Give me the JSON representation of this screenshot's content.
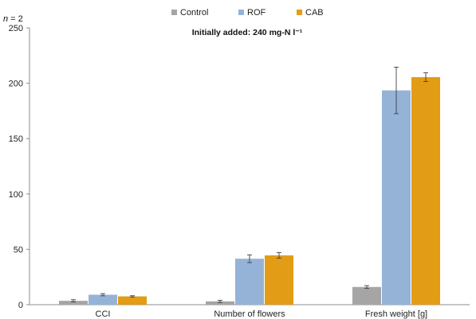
{
  "chart_data": {
    "type": "bar",
    "categories": [
      "CCI",
      "Number of flowers",
      "Fresh weight [g]"
    ],
    "series": [
      {
        "name": "Control",
        "color": "#a5a5a5",
        "values": [
          3.5,
          3.0,
          16.0
        ],
        "errors": [
          1.0,
          1.0,
          1.2
        ]
      },
      {
        "name": "ROF",
        "color": "#95b3d7",
        "values": [
          9.0,
          41.5,
          193.5
        ],
        "errors": [
          1.0,
          3.5,
          21.0
        ]
      },
      {
        "name": "CAB",
        "color": "#e39c16",
        "values": [
          7.5,
          44.5,
          205.5
        ],
        "errors": [
          0.6,
          2.5,
          4.0
        ]
      }
    ],
    "ylim": [
      0,
      250
    ],
    "yticks": [
      0,
      50,
      100,
      150,
      200,
      250
    ],
    "xlabel": "",
    "ylabel": "",
    "legend_position": "top-center",
    "grid": false,
    "annotation": "Initially added: 240 mg-N l⁻¹",
    "sample_size_label": "n = 2"
  }
}
